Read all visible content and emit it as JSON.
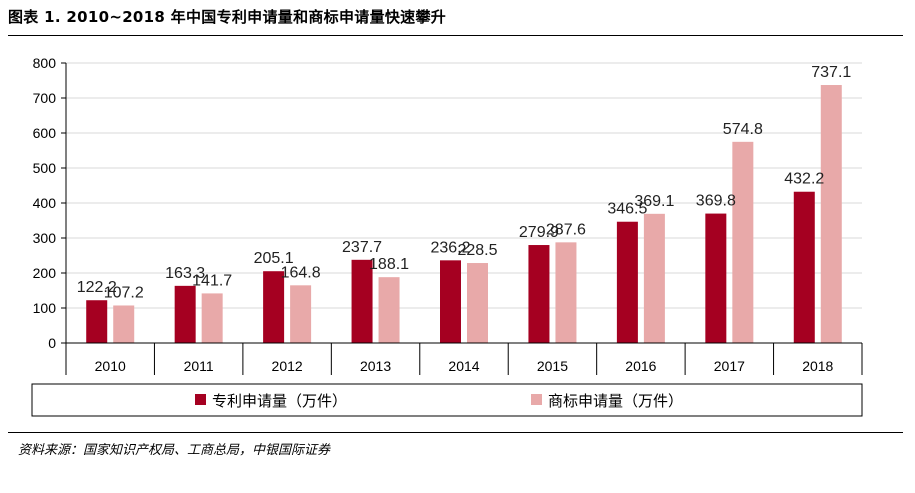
{
  "header": {
    "title": "图表 1. 2010~2018 年中国专利申请量和商标申请量快速攀升"
  },
  "footer": {
    "source": "资料来源：国家知识产权局、工商总局，中银国际证券"
  },
  "colors": {
    "series_1": "#a50021",
    "series_2": "#e8a9a9",
    "grid": "#d9d9d9",
    "axis": "#000000"
  },
  "chart_data": {
    "type": "bar",
    "categories": [
      "2010",
      "2011",
      "2012",
      "2013",
      "2014",
      "2015",
      "2016",
      "2017",
      "2018"
    ],
    "series": [
      {
        "name": "专利申请量（万件）",
        "values": [
          122.2,
          163.3,
          205.1,
          237.7,
          236.2,
          279.9,
          346.5,
          369.8,
          432.2
        ]
      },
      {
        "name": "商标申请量（万件）",
        "values": [
          107.2,
          141.7,
          164.8,
          188.1,
          228.5,
          287.6,
          369.1,
          574.8,
          737.1
        ]
      }
    ],
    "ylim": [
      0,
      800
    ],
    "yticks": [
      "0",
      "100",
      "200",
      "300",
      "400",
      "500",
      "600",
      "700",
      "800"
    ],
    "data_labels": [
      [
        "122.2",
        "163.3",
        "205.1",
        "237.7",
        "236.2",
        "279.9",
        "346.5",
        "369.8",
        "432.2"
      ],
      [
        "107.2",
        "141.7",
        "164.8",
        "188.1",
        "228.5",
        "287.6",
        "369.1",
        "574.8",
        "737.1"
      ]
    ],
    "grid": true,
    "legend_position": "bottom"
  }
}
